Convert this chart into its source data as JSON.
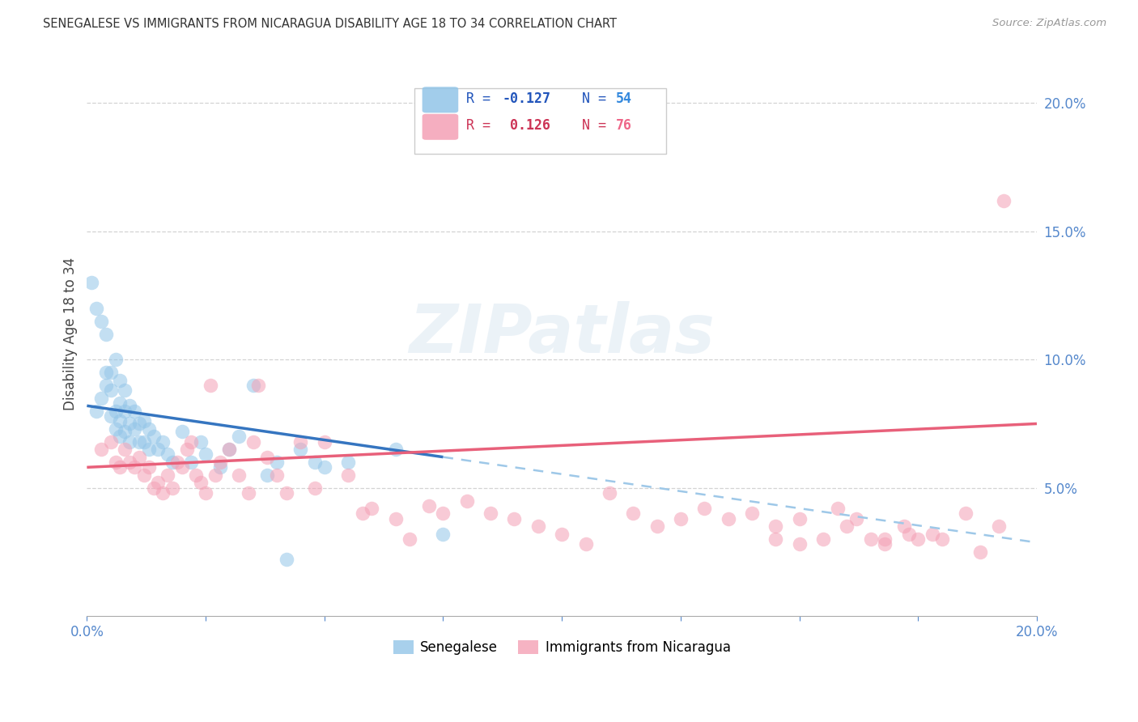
{
  "title": "SENEGALESE VS IMMIGRANTS FROM NICARAGUA DISABILITY AGE 18 TO 34 CORRELATION CHART",
  "source": "Source: ZipAtlas.com",
  "ylabel_label": "Disability Age 18 to 34",
  "x_min": 0.0,
  "x_max": 0.2,
  "y_min": 0.0,
  "y_max": 0.22,
  "color_blue": "#92c5e8",
  "color_pink": "#f4a0b5",
  "color_blue_line": "#3575c0",
  "color_pink_line": "#e8607a",
  "color_blue_dash": "#9ec8e8",
  "legend_r1_val": "-0.127",
  "legend_n1_val": "54",
  "legend_r2_val": "0.126",
  "legend_n2_val": "76",
  "legend_label1": "Senegalese",
  "legend_label2": "Immigrants from Nicaragua",
  "watermark": "ZIPatlas",
  "senegalese_x": [
    0.001,
    0.002,
    0.002,
    0.003,
    0.003,
    0.004,
    0.004,
    0.004,
    0.005,
    0.005,
    0.005,
    0.006,
    0.006,
    0.006,
    0.007,
    0.007,
    0.007,
    0.007,
    0.008,
    0.008,
    0.008,
    0.009,
    0.009,
    0.009,
    0.01,
    0.01,
    0.011,
    0.011,
    0.012,
    0.012,
    0.013,
    0.013,
    0.014,
    0.015,
    0.016,
    0.017,
    0.018,
    0.02,
    0.022,
    0.024,
    0.025,
    0.028,
    0.03,
    0.032,
    0.035,
    0.038,
    0.04,
    0.042,
    0.045,
    0.048,
    0.05,
    0.055,
    0.065,
    0.075
  ],
  "senegalese_y": [
    0.13,
    0.08,
    0.12,
    0.085,
    0.115,
    0.09,
    0.095,
    0.11,
    0.078,
    0.088,
    0.095,
    0.073,
    0.08,
    0.1,
    0.07,
    0.076,
    0.083,
    0.092,
    0.072,
    0.08,
    0.088,
    0.068,
    0.075,
    0.082,
    0.073,
    0.08,
    0.068,
    0.075,
    0.068,
    0.076,
    0.065,
    0.073,
    0.07,
    0.065,
    0.068,
    0.063,
    0.06,
    0.072,
    0.06,
    0.068,
    0.063,
    0.058,
    0.065,
    0.07,
    0.09,
    0.055,
    0.06,
    0.022,
    0.065,
    0.06,
    0.058,
    0.06,
    0.065,
    0.032
  ],
  "nicaragua_x": [
    0.003,
    0.005,
    0.006,
    0.007,
    0.008,
    0.009,
    0.01,
    0.011,
    0.012,
    0.013,
    0.014,
    0.015,
    0.016,
    0.017,
    0.018,
    0.019,
    0.02,
    0.021,
    0.022,
    0.023,
    0.024,
    0.025,
    0.026,
    0.027,
    0.028,
    0.03,
    0.032,
    0.034,
    0.035,
    0.036,
    0.038,
    0.04,
    0.042,
    0.045,
    0.048,
    0.05,
    0.055,
    0.058,
    0.06,
    0.065,
    0.068,
    0.072,
    0.075,
    0.08,
    0.085,
    0.09,
    0.095,
    0.1,
    0.105,
    0.11,
    0.115,
    0.12,
    0.125,
    0.13,
    0.135,
    0.14,
    0.145,
    0.15,
    0.155,
    0.16,
    0.165,
    0.168,
    0.172,
    0.175,
    0.18,
    0.185,
    0.188,
    0.192,
    0.158,
    0.162,
    0.15,
    0.145,
    0.168,
    0.173,
    0.178,
    0.193
  ],
  "nicaragua_y": [
    0.065,
    0.068,
    0.06,
    0.058,
    0.065,
    0.06,
    0.058,
    0.062,
    0.055,
    0.058,
    0.05,
    0.052,
    0.048,
    0.055,
    0.05,
    0.06,
    0.058,
    0.065,
    0.068,
    0.055,
    0.052,
    0.048,
    0.09,
    0.055,
    0.06,
    0.065,
    0.055,
    0.048,
    0.068,
    0.09,
    0.062,
    0.055,
    0.048,
    0.068,
    0.05,
    0.068,
    0.055,
    0.04,
    0.042,
    0.038,
    0.03,
    0.043,
    0.04,
    0.045,
    0.04,
    0.038,
    0.035,
    0.032,
    0.028,
    0.048,
    0.04,
    0.035,
    0.038,
    0.042,
    0.038,
    0.04,
    0.03,
    0.038,
    0.03,
    0.035,
    0.03,
    0.028,
    0.035,
    0.03,
    0.03,
    0.04,
    0.025,
    0.035,
    0.042,
    0.038,
    0.028,
    0.035,
    0.03,
    0.032,
    0.032,
    0.162
  ]
}
